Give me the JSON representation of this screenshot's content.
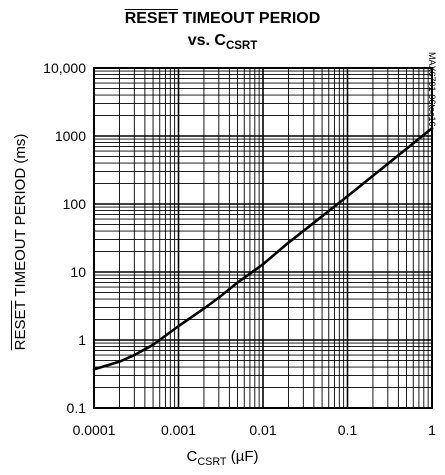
{
  "title": {
    "overline_part": "RESET",
    "rest": " TIMEOUT PERIOD",
    "line2_prefix": "vs. C",
    "line2_sub": "CSRT"
  },
  "side_label": "MAX6791-96toc16",
  "chart_data": {
    "type": "line",
    "title": "RESET TIMEOUT PERIOD vs. CCSRT",
    "xlabel": "CCSRT (µF)",
    "xlabel_parts": {
      "main": "C",
      "sub": "CSRT",
      "unit": " (µF)"
    },
    "ylabel": "RESET TIMEOUT PERIOD (ms)",
    "ylabel_parts": {
      "overline_part": "RESET",
      "rest": " TIMEOUT PERIOD (ms)"
    },
    "x_scale": "log",
    "y_scale": "log",
    "xlim": [
      0.0001,
      1
    ],
    "ylim": [
      0.1,
      10000
    ],
    "grid": true,
    "x_ticks": [
      0.0001,
      0.001,
      0.01,
      0.1,
      1
    ],
    "x_tick_labels": [
      "0.0001",
      "0.001",
      "0.01",
      "0.1",
      "1"
    ],
    "y_ticks": [
      0.1,
      1,
      10,
      100,
      1000,
      10000
    ],
    "y_tick_labels": [
      "0.1",
      "1",
      "10",
      "100",
      "1000",
      "10,000"
    ],
    "series": [
      {
        "color": "#000000",
        "x": [
          0.0001,
          0.0002,
          0.0003,
          0.0005,
          0.001,
          0.002,
          0.003,
          0.005,
          0.01,
          0.02,
          0.03,
          0.05,
          0.1,
          0.2,
          0.3,
          0.5,
          1
        ],
        "y": [
          0.37,
          0.48,
          0.6,
          0.85,
          1.6,
          2.9,
          4.2,
          7.0,
          13,
          27,
          40,
          66,
          130,
          260,
          390,
          650,
          1300
        ]
      }
    ]
  }
}
